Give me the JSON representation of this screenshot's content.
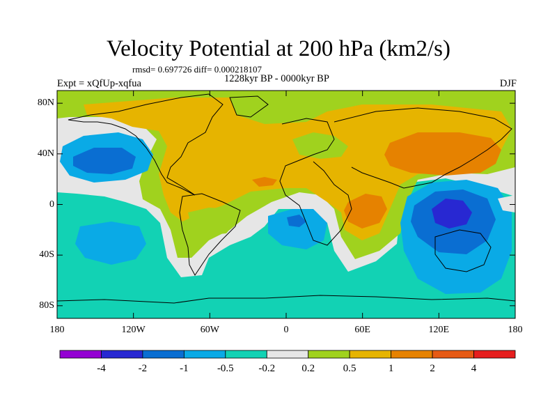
{
  "title": "Velocity Potential at 200 hPa (km2/s)",
  "stats": "rmsd= 0.697726 diff= 0.000218107",
  "period": "1228kyr BP - 0000kyr BP",
  "experiment": "Expt = xQfUp-xqfua",
  "season": "DJF",
  "lat_ticks": [
    {
      "label": "80N",
      "lat": 80
    },
    {
      "label": "40N",
      "lat": 40
    },
    {
      "label": "0",
      "lat": 0
    },
    {
      "label": "40S",
      "lat": -40
    },
    {
      "label": "80S",
      "lat": -80
    }
  ],
  "lon_ticks": [
    {
      "label": "180",
      "lon": -180
    },
    {
      "label": "120W",
      "lon": -120
    },
    {
      "label": "60W",
      "lon": -60
    },
    {
      "label": "0",
      "lon": 0
    },
    {
      "label": "60E",
      "lon": 60
    },
    {
      "label": "120E",
      "lon": 120
    },
    {
      "label": "180",
      "lon": 180
    }
  ],
  "colorbar": {
    "colors": [
      "#9400d3",
      "#2828d2",
      "#0a6ed2",
      "#0aaae6",
      "#12d2b4",
      "#e6e6e6",
      "#a0d21e",
      "#e6b400",
      "#e68200",
      "#e65a14",
      "#e61e1e"
    ],
    "labels": [
      "-4",
      "-2",
      "-1",
      "-0.5",
      "-0.2",
      "0.2",
      "0.5",
      "1",
      "2",
      "4"
    ]
  },
  "levels": {
    "neg05_02": "#12d2b4",
    "neg02_02": "#e6e6e6",
    "pos02_05": "#a0d21e",
    "pos05_1": "#e6b400",
    "pos1_2": "#e68200",
    "neg1_05": "#0aaae6",
    "neg2_1": "#0a6ed2",
    "neg4_2": "#2828d2"
  }
}
